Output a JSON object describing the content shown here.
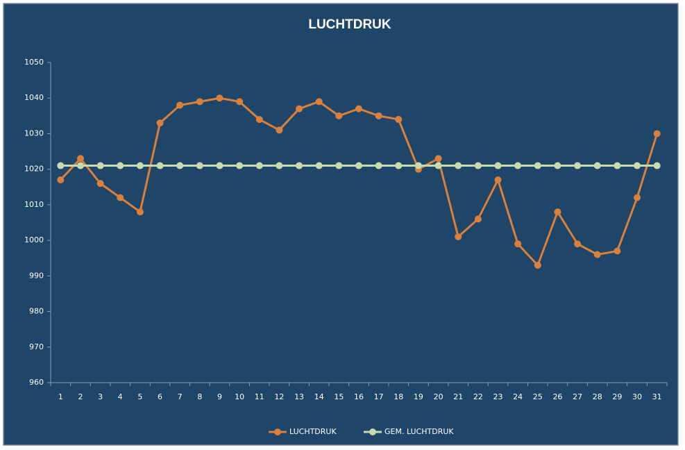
{
  "chart_data": {
    "type": "line",
    "title": "LUCHTDRUK",
    "categories": [
      "1",
      "2",
      "3",
      "4",
      "5",
      "6",
      "7",
      "8",
      "9",
      "10",
      "11",
      "12",
      "13",
      "14",
      "15",
      "16",
      "17",
      "18",
      "19",
      "20",
      "21",
      "22",
      "23",
      "24",
      "25",
      "26",
      "27",
      "28",
      "29",
      "30",
      "31"
    ],
    "series": [
      {
        "name": "LUCHTDRUK",
        "color": "#d9803c",
        "values": [
          1017,
          1023,
          1016,
          1012,
          1008,
          1033,
          1038,
          1039,
          1040,
          1039,
          1034,
          1031,
          1037,
          1039,
          1035,
          1037,
          1035,
          1034,
          1020,
          1023,
          1001,
          1006,
          1017,
          999,
          993,
          1008,
          999,
          996,
          997,
          1012,
          1030
        ]
      },
      {
        "name": "GEM. LUCHTDRUK",
        "color": "#c6dbb0",
        "values": [
          1021,
          1021,
          1021,
          1021,
          1021,
          1021,
          1021,
          1021,
          1021,
          1021,
          1021,
          1021,
          1021,
          1021,
          1021,
          1021,
          1021,
          1021,
          1021,
          1021,
          1021,
          1021,
          1021,
          1021,
          1021,
          1021,
          1021,
          1021,
          1021,
          1021,
          1021
        ]
      }
    ],
    "ylim": [
      960,
      1050
    ],
    "yticks": [
      960,
      970,
      980,
      990,
      1000,
      1010,
      1020,
      1030,
      1040,
      1050
    ],
    "grid": false,
    "legend": "bottom"
  }
}
